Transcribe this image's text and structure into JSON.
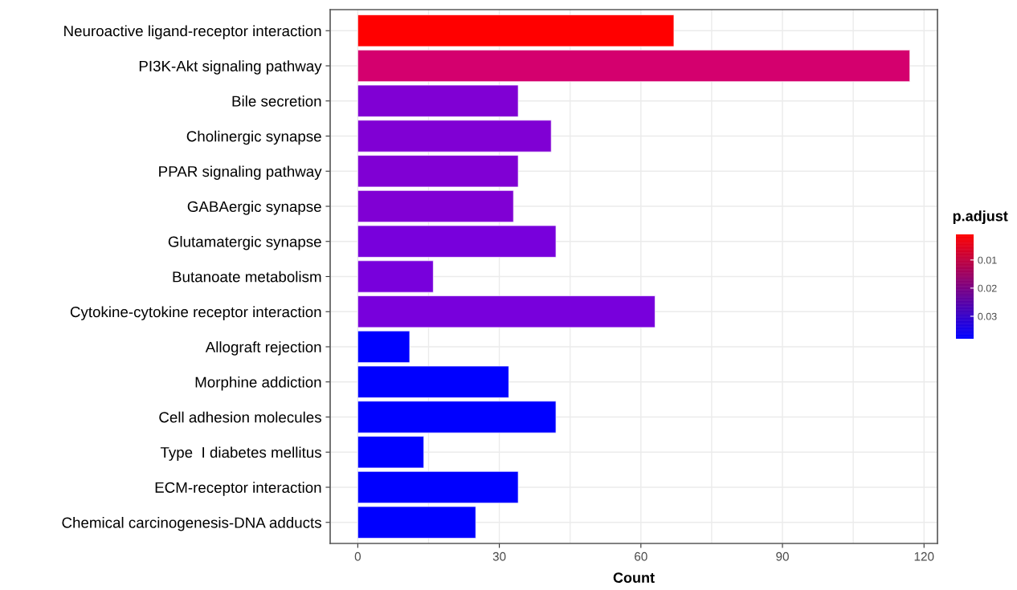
{
  "chart_data": {
    "type": "bar",
    "orientation": "horizontal",
    "xlabel": "Count",
    "clabel": "p.adjust",
    "categories": [
      "Neuroactive ligand-receptor interaction",
      "PI3K-Akt signaling pathway",
      "Bile secretion",
      "Cholinergic synapse",
      "PPAR signaling pathway",
      "GABAergic synapse",
      "Glutamatergic synapse",
      "Butanoate metabolism",
      "Cytokine-cytokine receptor interaction",
      "Allograft rejection",
      "Morphine addiction",
      "Cell adhesion molecules",
      "Type  I diabetes mellitus",
      "ECM-receptor interaction",
      "Chemical carcinogenesis-DNA adducts"
    ],
    "values": [
      67,
      117,
      34,
      41,
      34,
      33,
      42,
      16,
      63,
      11,
      32,
      42,
      14,
      34,
      25
    ],
    "colors": [
      "#ff0000",
      "#d4006e",
      "#8000d4",
      "#8000d4",
      "#8000d4",
      "#8000d4",
      "#7800dc",
      "#7800dc",
      "#7800dc",
      "#0000ff",
      "#0000ff",
      "#0000ff",
      "#0000ff",
      "#0000ff",
      "#0000ff"
    ],
    "xlim": [
      -5.85,
      122.85
    ],
    "xticks": [
      0,
      30,
      60,
      90,
      120
    ],
    "clim": [
      0.038,
      0.0009
    ],
    "cticks": [
      0.01,
      0.02,
      0.03
    ],
    "grid": true
  }
}
